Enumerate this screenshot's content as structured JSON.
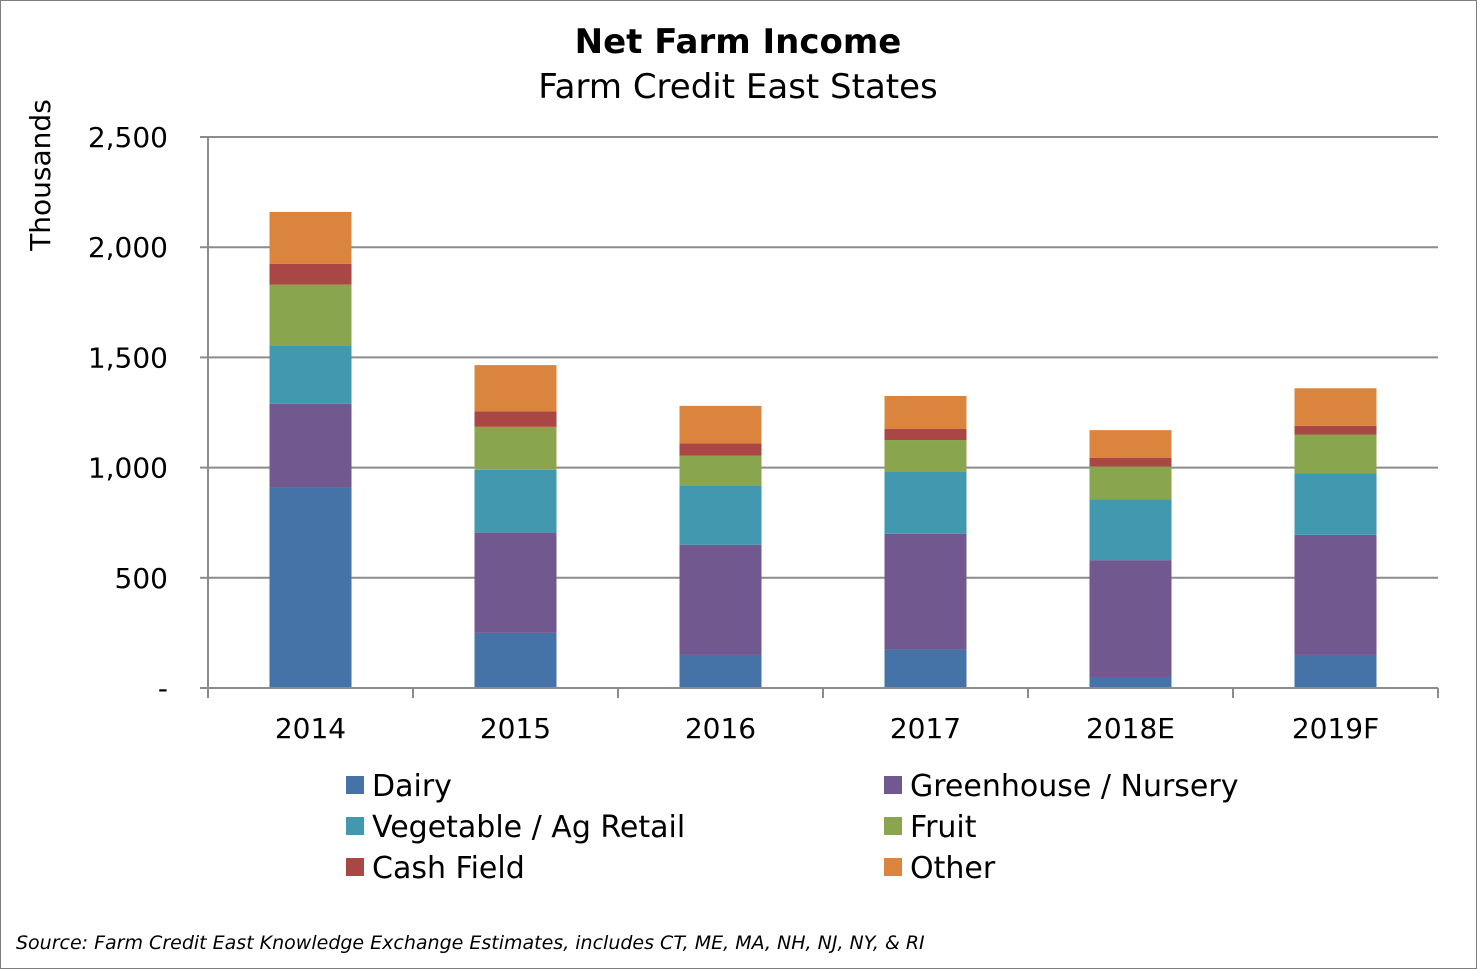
{
  "chart_data": {
    "type": "bar",
    "stacked": true,
    "title": "Net Farm Income",
    "subtitle": "Farm Credit East States",
    "ylabel": "Thousands",
    "xlabel": "",
    "ylim": [
      0,
      2500
    ],
    "yticks": [
      0,
      500,
      1000,
      1500,
      2000,
      2500
    ],
    "ytick_labels": [
      "-",
      "500",
      "1,000",
      "1,500",
      "2,000",
      "2,500"
    ],
    "grid": true,
    "legend_position": "bottom",
    "categories": [
      "2014",
      "2015",
      "2016",
      "2017",
      "2018E",
      "2019F"
    ],
    "series": [
      {
        "name": "Dairy",
        "color": "#4572a7",
        "values": [
          910,
          250,
          150,
          175,
          50,
          150
        ]
      },
      {
        "name": "Greenhouse / Nursery",
        "color": "#71588f",
        "values": [
          380,
          455,
          500,
          525,
          530,
          545
        ]
      },
      {
        "name": "Vegetable / Ag Retail",
        "color": "#4198af",
        "values": [
          265,
          285,
          270,
          280,
          275,
          280
        ]
      },
      {
        "name": "Fruit",
        "color": "#89a54e",
        "values": [
          275,
          195,
          135,
          145,
          150,
          175
        ]
      },
      {
        "name": "Cash Field",
        "color": "#aa4643",
        "values": [
          95,
          70,
          55,
          50,
          40,
          40
        ]
      },
      {
        "name": "Other",
        "color": "#db843d",
        "values": [
          235,
          210,
          170,
          150,
          125,
          170
        ]
      }
    ],
    "source": "Source: Farm Credit East Knowledge Exchange Estimates, includes CT, ME, MA, NH, NJ, NY, & RI"
  }
}
